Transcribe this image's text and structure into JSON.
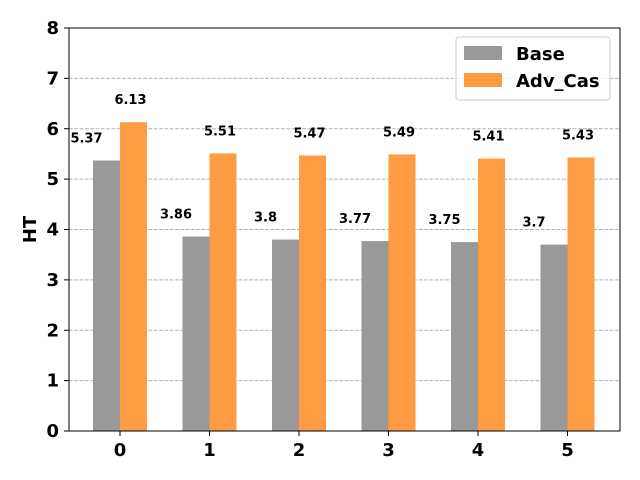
{
  "chart_data": {
    "type": "bar",
    "categories": [
      "0",
      "1",
      "2",
      "3",
      "4",
      "5"
    ],
    "series": [
      {
        "name": "Base",
        "color": "#999999",
        "values": [
          5.37,
          3.86,
          3.8,
          3.77,
          3.75,
          3.7
        ],
        "labels": [
          "5.37",
          "3.86",
          "3.8",
          "3.77",
          "3.75",
          "3.7"
        ]
      },
      {
        "name": "Adv_Cas",
        "color": "#ff9b42",
        "values": [
          6.13,
          5.51,
          5.47,
          5.49,
          5.41,
          5.43
        ],
        "labels": [
          "6.13",
          "5.51",
          "5.47",
          "5.49",
          "5.41",
          "5.43"
        ]
      }
    ],
    "title": "",
    "xlabel": "",
    "ylabel": "HT",
    "ylim": [
      0,
      8
    ],
    "yticks": [
      "0",
      "1",
      "2",
      "3",
      "4",
      "5",
      "6",
      "7",
      "8"
    ],
    "grid": "y-dashed",
    "legend_position": "top-right"
  }
}
